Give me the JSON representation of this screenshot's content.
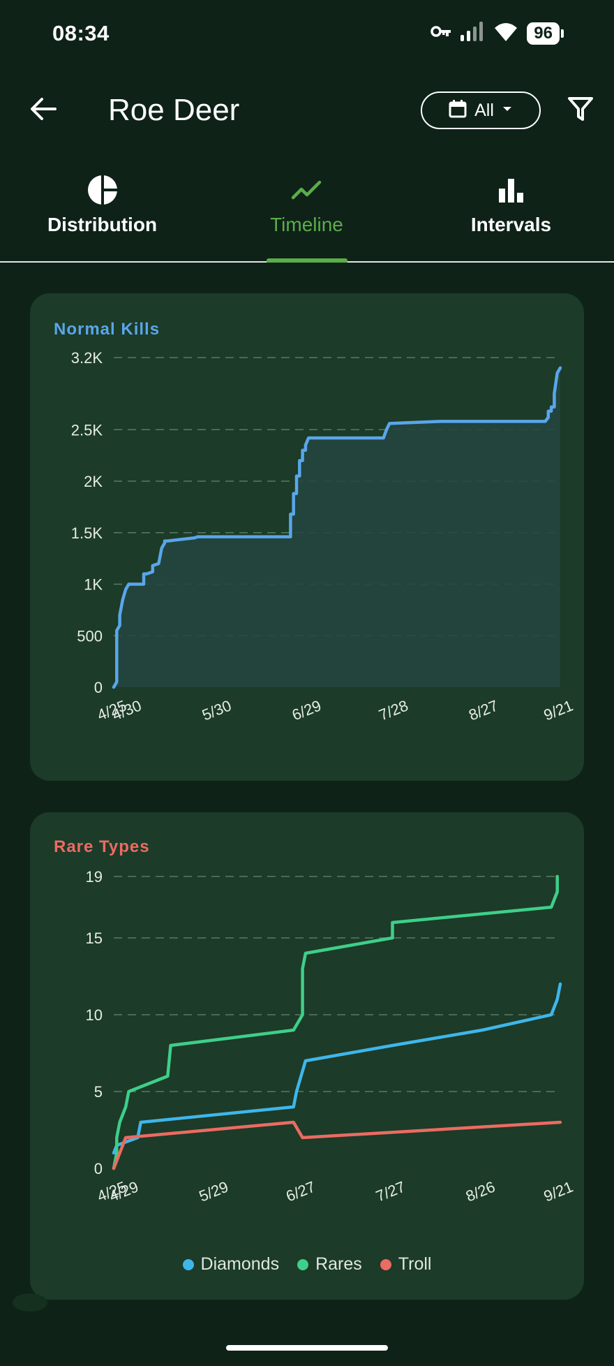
{
  "status_bar": {
    "time": "08:34",
    "battery": "96"
  },
  "app_bar": {
    "title": "Roe Deer",
    "date_filter": "All"
  },
  "tabs": [
    {
      "label": "Distribution",
      "icon": "pie-chart-icon",
      "active": false
    },
    {
      "label": "Timeline",
      "icon": "trending-up-icon",
      "active": true
    },
    {
      "label": "Intervals",
      "icon": "bar-chart-icon",
      "active": false
    }
  ],
  "colors": {
    "accent": "#5cad4a",
    "normal": "#5aa6ea",
    "diamonds": "#3fb6ea",
    "rares": "#3ecf8a",
    "troll": "#ec6b62",
    "card": "#1c3b28",
    "background": "#0e2218"
  },
  "chart_data": [
    {
      "type": "area",
      "title": "Normal Kills",
      "ylim": [
        0,
        3200
      ],
      "y_ticks": [
        "0",
        "500",
        "1K",
        "1.5K",
        "2K",
        "2.5K",
        "3.2K"
      ],
      "x_ticks": [
        "4/25",
        "4/30",
        "5/30",
        "6/29",
        "7/28",
        "8/27",
        "9/21"
      ],
      "grid": true,
      "series": [
        {
          "x": [
            "4/25",
            "4/26",
            "4/26",
            "4/27",
            "4/27",
            "4/28",
            "4/29",
            "4/30",
            "5/1",
            "5/2",
            "5/5",
            "5/5",
            "5/6",
            "5/8",
            "5/8",
            "5/10",
            "5/11",
            "5/12",
            "5/12",
            "5/13",
            "5/22",
            "5/23",
            "6/23",
            "6/23",
            "6/24",
            "6/24",
            "6/25",
            "6/25",
            "6/26",
            "6/26",
            "6/27",
            "6/27",
            "6/28",
            "6/28",
            "6/29",
            "7/24",
            "7/25",
            "7/26",
            "8/12",
            "9/16",
            "9/17",
            "9/17",
            "9/18",
            "9/18",
            "9/19",
            "9/19",
            "9/20",
            "9/21"
          ],
          "values": [
            0,
            50,
            550,
            600,
            700,
            850,
            950,
            1000,
            1000,
            1000,
            1000,
            1100,
            1100,
            1120,
            1180,
            1200,
            1350,
            1400,
            1420,
            1420,
            1450,
            1460,
            1460,
            1680,
            1680,
            1880,
            1880,
            2050,
            2050,
            2200,
            2200,
            2300,
            2300,
            2350,
            2420,
            2420,
            2500,
            2560,
            2580,
            2580,
            2620,
            2680,
            2680,
            2720,
            2720,
            2850,
            3050,
            3100
          ]
        }
      ]
    },
    {
      "type": "line",
      "title": "Rare Types",
      "ylim": [
        0,
        19
      ],
      "y_ticks": [
        "0",
        "5",
        "10",
        "15",
        "19"
      ],
      "x_ticks": [
        "4/25",
        "4/29",
        "5/29",
        "6/27",
        "7/27",
        "8/26",
        "9/21"
      ],
      "legend": "bottom",
      "grid": true,
      "series": [
        {
          "name": "Diamonds",
          "x": [
            "4/25",
            "4/26",
            "5/3",
            "5/4",
            "6/24",
            "6/25",
            "6/28",
            "7/27",
            "8/26",
            "9/18",
            "9/20",
            "9/21"
          ],
          "values": [
            1,
            1.5,
            2,
            3,
            4,
            5,
            7,
            8,
            9,
            10,
            11,
            12
          ]
        },
        {
          "name": "Rares",
          "x": [
            "4/25",
            "4/26",
            "4/26",
            "4/27",
            "4/29",
            "4/30",
            "5/13",
            "5/14",
            "6/24",
            "6/27",
            "6/27",
            "6/28",
            "7/27",
            "7/27",
            "9/18",
            "9/20",
            "9/20"
          ],
          "values": [
            0,
            1,
            2,
            3,
            4,
            5,
            6,
            8,
            9,
            10,
            13,
            14,
            15,
            16,
            17,
            18,
            19
          ]
        },
        {
          "name": "Troll",
          "x": [
            "4/25",
            "4/29",
            "6/24",
            "6/27",
            "9/21"
          ],
          "values": [
            0,
            2,
            3,
            2,
            3
          ]
        }
      ]
    }
  ]
}
